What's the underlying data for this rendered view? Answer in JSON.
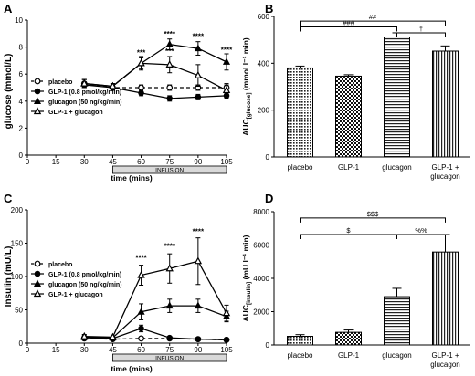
{
  "chart_data": [
    {
      "panel_letter": "A",
      "type": "line",
      "ylabel": "glucose (mmol/L)",
      "xlabel": "time (mins)",
      "x_ticks": [
        "0",
        "15",
        "30",
        "45",
        "60",
        "75",
        "90",
        "105"
      ],
      "y_ticks": [
        "0",
        "2",
        "4",
        "6",
        "8",
        "10"
      ],
      "xlim": [
        0,
        105
      ],
      "ylim": [
        0,
        10
      ],
      "infusion_label": "INFUSION",
      "infusion_range": [
        45,
        105
      ],
      "legend": [
        "placebo",
        "GLP-1 (0.8 pmol/kg/min)",
        "glucagon (50 ng/kg/min)",
        "GLP-1 + glucagon"
      ],
      "x": [
        30,
        45,
        60,
        75,
        90,
        105
      ],
      "series": [
        {
          "name": "placebo",
          "marker": "circle-open",
          "dashed": true,
          "values": [
            5.3,
            5.0,
            5.0,
            5.0,
            5.0,
            5.0
          ],
          "err": [
            0.3,
            0.2,
            0.2,
            0.2,
            0.2,
            0.2
          ]
        },
        {
          "name": "GLP-1 (0.8 pmol/kg/min)",
          "marker": "circle-filled",
          "dashed": false,
          "values": [
            5.2,
            5.0,
            4.6,
            4.2,
            4.3,
            4.4
          ],
          "err": [
            0.2,
            0.2,
            0.2,
            0.2,
            0.2,
            0.2
          ]
        },
        {
          "name": "glucagon (50 ng/kg/min)",
          "marker": "triangle-filled",
          "dashed": false,
          "values": [
            5.3,
            5.1,
            6.8,
            8.2,
            7.9,
            6.9
          ],
          "err": [
            0.3,
            0.2,
            0.5,
            0.4,
            0.5,
            0.6
          ]
        },
        {
          "name": "GLP-1 + glucagon",
          "marker": "triangle-open",
          "dashed": false,
          "values": [
            5.3,
            5.1,
            6.8,
            6.7,
            5.9,
            4.8
          ],
          "err": [
            0.3,
            0.2,
            0.4,
            0.6,
            0.8,
            0.5
          ]
        }
      ],
      "annotations": [
        {
          "x": 60,
          "y": 7.4,
          "text": "***"
        },
        {
          "x": 75,
          "y": 8.8,
          "text": "****"
        },
        {
          "x": 75,
          "y": 7.5,
          "text": "***"
        },
        {
          "x": 90,
          "y": 8.6,
          "text": "****"
        },
        {
          "x": 105,
          "y": 7.6,
          "text": "****"
        }
      ]
    },
    {
      "panel_letter": "B",
      "type": "bar",
      "ylabel": "AUC[glucose] (mmol l⁻¹ min)",
      "categories": [
        "placebo",
        "GLP-1",
        "glucagon",
        "GLP-1 + glucagon"
      ],
      "values": [
        380,
        345,
        512,
        452
      ],
      "err": [
        8,
        6,
        18,
        22
      ],
      "patterns": [
        "dots",
        "checker",
        "hlines",
        "vlines"
      ],
      "y_ticks": [
        "0",
        "200",
        "400",
        "600"
      ],
      "ylim": [
        0,
        600
      ],
      "brackets": [
        {
          "from": 0,
          "to": 3,
          "y": 580,
          "text": "##"
        },
        {
          "from": 0,
          "to": 2,
          "y": 555,
          "text": "###"
        },
        {
          "from": 2,
          "to": 3,
          "y": 530,
          "text": "†"
        }
      ]
    },
    {
      "panel_letter": "C",
      "type": "line",
      "ylabel": "Insulin (mU/L)",
      "xlabel": "time (mins)",
      "x_ticks": [
        "0",
        "15",
        "30",
        "45",
        "60",
        "75",
        "90",
        "105"
      ],
      "y_ticks": [
        "0",
        "50",
        "100",
        "150",
        "200"
      ],
      "xlim": [
        0,
        105
      ],
      "ylim": [
        0,
        200
      ],
      "infusion_label": "INFUSION",
      "infusion_range": [
        45,
        105
      ],
      "legend": [
        "placebo",
        "GLP-1 (0.8 pmol/kg/min)",
        "glucagon (50 ng/kg/min)",
        "GLP-1 + glucagon"
      ],
      "x": [
        30,
        45,
        60,
        75,
        90,
        105
      ],
      "series": [
        {
          "name": "placebo",
          "marker": "circle-open",
          "dashed": true,
          "values": [
            7,
            6,
            7,
            7,
            6,
            5
          ],
          "err": [
            2,
            1,
            2,
            2,
            1,
            1
          ]
        },
        {
          "name": "GLP-1 (0.8 pmol/kg/min)",
          "marker": "circle-filled",
          "dashed": false,
          "values": [
            8,
            7,
            22,
            8,
            6,
            5
          ],
          "err": [
            2,
            2,
            5,
            2,
            2,
            1
          ]
        },
        {
          "name": "glucagon (50 ng/kg/min)",
          "marker": "triangle-filled",
          "dashed": false,
          "values": [
            9,
            8,
            47,
            56,
            56,
            40
          ],
          "err": [
            3,
            2,
            12,
            10,
            10,
            8
          ]
        },
        {
          "name": "GLP-1 + glucagon",
          "marker": "triangle-open",
          "dashed": false,
          "values": [
            10,
            9,
            102,
            112,
            123,
            45
          ],
          "err": [
            3,
            2,
            15,
            22,
            35,
            12
          ]
        }
      ],
      "annotations": [
        {
          "x": 60,
          "y": 124,
          "text": "****"
        },
        {
          "x": 75,
          "y": 142,
          "text": "****"
        },
        {
          "x": 90,
          "y": 164,
          "text": "****"
        }
      ]
    },
    {
      "panel_letter": "D",
      "type": "bar",
      "ylabel": "AUC[insulin] (mU l⁻¹ min)",
      "categories": [
        "placebo",
        "GLP-1",
        "glucagon",
        "GLP-1 + glucagon"
      ],
      "values": [
        520,
        760,
        2900,
        5580
      ],
      "err": [
        100,
        140,
        500,
        1050
      ],
      "patterns": [
        "dots",
        "checker",
        "hlines",
        "vlines"
      ],
      "y_ticks": [
        "0",
        "2000",
        "4000",
        "6000",
        "8000"
      ],
      "ylim": [
        0,
        8000
      ],
      "brackets": [
        {
          "from": 0,
          "to": 3,
          "y": 7620,
          "text": "$$$"
        },
        {
          "from": 0,
          "to": 2,
          "y": 6630,
          "text": "$"
        },
        {
          "from": 2,
          "to": 3,
          "y": 6630,
          "text": "%%"
        }
      ]
    }
  ]
}
